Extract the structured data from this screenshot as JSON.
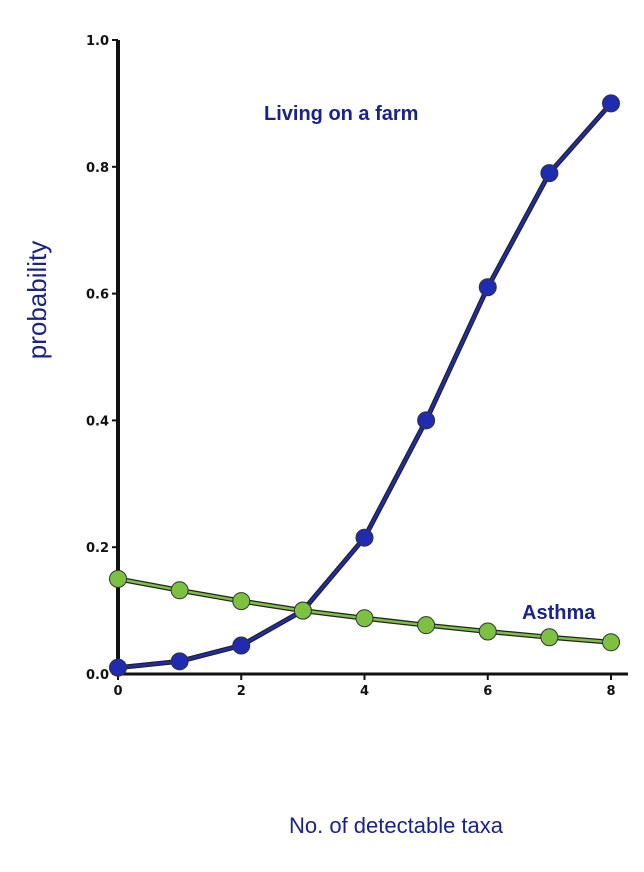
{
  "chart_data": {
    "type": "line",
    "title": "",
    "xlabel": "No. of detectable taxa",
    "ylabel": "probability",
    "xlim": [
      0,
      8
    ],
    "ylim": [
      0,
      1.0
    ],
    "x_ticks": [
      0,
      2,
      4,
      6,
      8
    ],
    "x_tick_labels": [
      "0",
      "2",
      "4",
      "6",
      "8"
    ],
    "y_ticks": [
      0.0,
      0.2,
      0.4,
      0.6,
      0.8,
      1.0
    ],
    "y_tick_labels": [
      "0.0",
      "0.2",
      "0.4",
      "0.6",
      "0.8",
      "1.0"
    ],
    "grid": false,
    "legend": "none",
    "series": [
      {
        "name": "Living on a farm",
        "color": "#1f2bb0",
        "label_color": "#1a2388",
        "x": [
          0,
          1,
          2,
          3,
          4,
          5,
          6,
          7,
          8
        ],
        "values": [
          0.01,
          0.02,
          0.045,
          0.1,
          0.215,
          0.4,
          0.61,
          0.79,
          0.9
        ]
      },
      {
        "name": "Asthma",
        "color": "#7cc142",
        "label_color": "#1a2388",
        "x": [
          0,
          1,
          2,
          3,
          4,
          5,
          6,
          7,
          8
        ],
        "values": [
          0.15,
          0.132,
          0.115,
          0.1,
          0.088,
          0.077,
          0.067,
          0.058,
          0.05
        ]
      }
    ]
  },
  "colors": {
    "axis": "#111111",
    "ylabel": "#1a2388",
    "xlabel": "#1a2388"
  }
}
